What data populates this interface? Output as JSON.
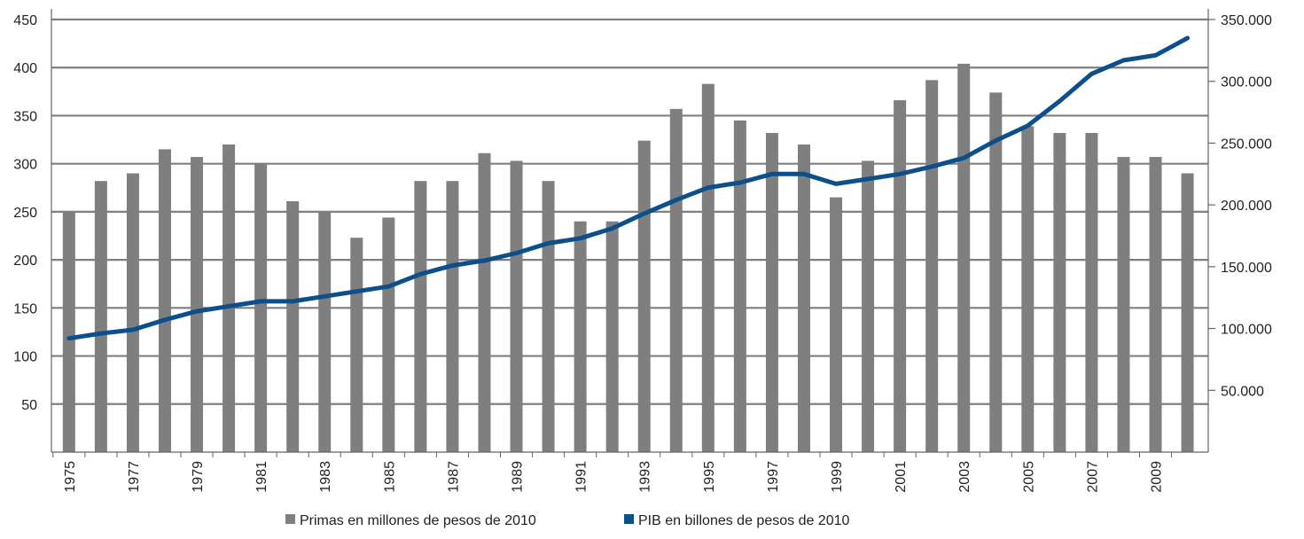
{
  "chart_data": {
    "type": "bar+line",
    "categories": [
      "1975",
      "1976",
      "1977",
      "1978",
      "1979",
      "1980",
      "1981",
      "1982",
      "1983",
      "1984",
      "1985",
      "1986",
      "1987",
      "1988",
      "1989",
      "1990",
      "1991",
      "1992",
      "1993",
      "1994",
      "1995",
      "1996",
      "1997",
      "1998",
      "1999",
      "2000",
      "2001",
      "2002",
      "2003",
      "2004",
      "2005",
      "2006",
      "2007",
      "2008",
      "2009",
      "2010"
    ],
    "x_tick_labels": [
      "1975",
      "1977",
      "1979",
      "1981",
      "1983",
      "1985",
      "1987",
      "1989",
      "1991",
      "1993",
      "1995",
      "1997",
      "1999",
      "2001",
      "2003",
      "2005",
      "2007",
      "2009"
    ],
    "series": [
      {
        "name": "Primas en millones de pesos de 2010",
        "type": "bar",
        "axis": "left",
        "color": "#7f7f7f",
        "values": [
          250,
          282,
          290,
          315,
          307,
          320,
          300,
          261,
          249,
          223,
          244,
          282,
          282,
          311,
          303,
          282,
          240,
          240,
          324,
          357,
          383,
          345,
          332,
          320,
          265,
          303,
          366,
          387,
          404,
          374,
          339,
          332,
          332,
          307,
          307,
          290
        ]
      },
      {
        "name": "PIB en billones de pesos de 2010",
        "type": "line",
        "axis": "right",
        "color": "#0d4f8b",
        "values": [
          92000,
          96000,
          99000,
          107000,
          114000,
          118000,
          122000,
          122000,
          126000,
          130000,
          134000,
          144000,
          151000,
          155000,
          161000,
          169000,
          173000,
          181000,
          193000,
          204000,
          214000,
          218000,
          225000,
          225000,
          217000,
          221000,
          225000,
          231000,
          238000,
          252000,
          264000,
          284000,
          306000,
          317000,
          321000,
          335000
        ]
      }
    ],
    "y_left": {
      "min": 0,
      "max": 450,
      "ticks": [
        50,
        100,
        150,
        200,
        250,
        300,
        350,
        400,
        450
      ],
      "tick_labels": [
        "50",
        "100",
        "150",
        "200",
        "250",
        "300",
        "350",
        "400",
        "450"
      ]
    },
    "y_right": {
      "min": 0,
      "max": 350000,
      "ticks": [
        50000,
        100000,
        150000,
        200000,
        250000,
        300000,
        350000
      ],
      "tick_labels": [
        "50.000",
        "100.000",
        "150.000",
        "200.000",
        "250.000",
        "300.000",
        "350.000"
      ]
    },
    "grid": true,
    "legend_position": "bottom",
    "colors": {
      "grid": "#7f7f7f",
      "bar": "#7f7f7f",
      "line": "#0d4f8b",
      "plot_background": "#ffffff"
    }
  }
}
